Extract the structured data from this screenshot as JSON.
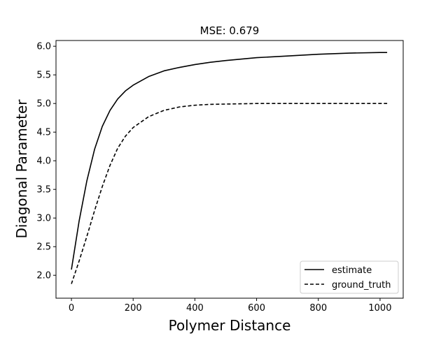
{
  "chart_data": {
    "type": "line",
    "title": "MSE: 0.679",
    "xlabel": "Polymer Distance",
    "ylabel": "Diagonal Parameter",
    "xlim": [
      -50,
      1075
    ],
    "ylim": [
      1.6,
      6.1
    ],
    "xticks": [
      0,
      200,
      400,
      600,
      800,
      1000
    ],
    "yticks": [
      2.0,
      2.5,
      3.0,
      3.5,
      4.0,
      4.5,
      5.0,
      5.5,
      6.0
    ],
    "grid": false,
    "legend_position": "lower-right",
    "series": [
      {
        "name": "estimate",
        "style": "solid",
        "color": "#000000",
        "x": [
          0,
          25,
          50,
          75,
          100,
          125,
          150,
          175,
          200,
          250,
          300,
          350,
          400,
          450,
          500,
          600,
          700,
          800,
          900,
          1000,
          1023
        ],
        "y": [
          2.1,
          2.95,
          3.65,
          4.2,
          4.6,
          4.88,
          5.08,
          5.22,
          5.32,
          5.47,
          5.57,
          5.63,
          5.68,
          5.72,
          5.75,
          5.8,
          5.83,
          5.86,
          5.88,
          5.89,
          5.89
        ]
      },
      {
        "name": "ground_truth",
        "style": "dashed",
        "color": "#000000",
        "x": [
          0,
          25,
          50,
          75,
          100,
          125,
          150,
          175,
          200,
          250,
          300,
          350,
          400,
          450,
          500,
          600,
          700,
          800,
          900,
          1000,
          1023
        ],
        "y": [
          1.85,
          2.25,
          2.68,
          3.13,
          3.55,
          3.92,
          4.22,
          4.43,
          4.58,
          4.77,
          4.88,
          4.94,
          4.97,
          4.985,
          4.99,
          5.0,
          5.0,
          5.0,
          5.0,
          5.0,
          5.0
        ]
      }
    ]
  }
}
